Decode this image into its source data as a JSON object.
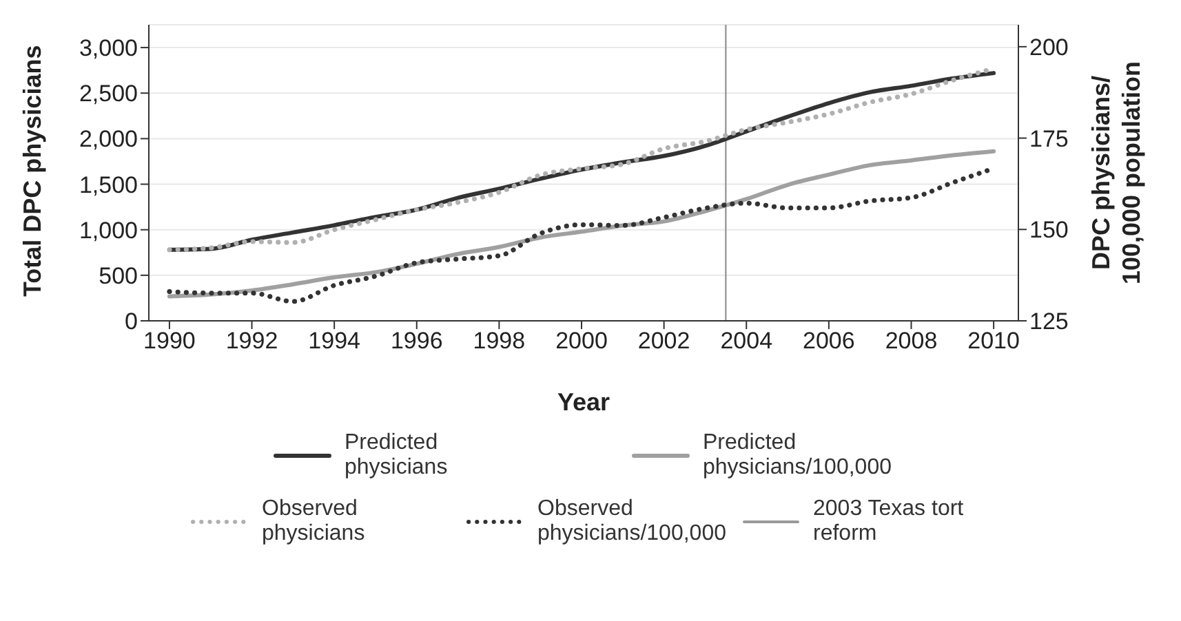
{
  "chart_data": {
    "type": "line",
    "xlabel": "Year",
    "ylabel": "Total DPC physicians",
    "y2label": "DPC physicians/ 100,000 population",
    "x": [
      1990,
      1991,
      1992,
      1993,
      1994,
      1995,
      1996,
      1997,
      1998,
      1999,
      2000,
      2001,
      2002,
      2003,
      2004,
      2005,
      2006,
      2007,
      2008,
      2009,
      2010
    ],
    "series": [
      {
        "name": "Predicted physicians",
        "color": "#333333",
        "line_style": "solid",
        "values": [
          780,
          790,
          890,
          970,
          1050,
          1140,
          1220,
          1350,
          1450,
          1560,
          1660,
          1740,
          1810,
          1920,
          2080,
          2240,
          2390,
          2510,
          2580,
          2660,
          2720
        ]
      },
      {
        "name": "Predicted physicians/100,000",
        "color": "#a0a0a0",
        "line_style": "solid",
        "axis": "y2",
        "values": [
          131.7,
          132.2,
          133.3,
          135,
          136.9,
          138.3,
          140.6,
          143.3,
          145.2,
          147.8,
          149.4,
          151.1,
          152.2,
          155,
          158.3,
          162.2,
          165,
          167.6,
          168.9,
          170.3,
          171.4
        ]
      },
      {
        "name": "Observed physicians",
        "color": "#b0b0b0",
        "line_style": "dotted",
        "values": [
          780,
          800,
          870,
          860,
          1000,
          1110,
          1220,
          1300,
          1410,
          1600,
          1670,
          1720,
          1890,
          1970,
          2100,
          2180,
          2270,
          2400,
          2490,
          2640,
          2770
        ]
      },
      {
        "name": "Observed physicians/100,000",
        "color": "#333333",
        "line_style": "dotted",
        "axis": "y2",
        "values": [
          133,
          132.6,
          132.6,
          130.3,
          134.7,
          137.2,
          140.9,
          141.9,
          142.8,
          148.9,
          151.3,
          151.1,
          153.3,
          155.8,
          157.2,
          155.9,
          155.9,
          157.8,
          158.7,
          162.8,
          166.7
        ]
      }
    ],
    "ref_lines": [
      {
        "axis": "x",
        "value": 2003.5,
        "label": "2003 Texas tort reform",
        "color": "#999999"
      }
    ],
    "xlim": [
      1989.5,
      2010.6
    ],
    "xticks": [
      1990,
      1992,
      1994,
      1996,
      1998,
      2000,
      2002,
      2004,
      2006,
      2008,
      2010
    ],
    "ylim": [
      0,
      3250
    ],
    "yticks": [
      0,
      {
        "value": 500,
        "label": "500"
      },
      {
        "value": 1000,
        "label": "1,000"
      },
      {
        "value": 1500,
        "label": "1,500"
      },
      {
        "value": 2000,
        "label": "2,000"
      },
      {
        "value": 2500,
        "label": "2,500"
      },
      {
        "value": 3000,
        "label": "3,000"
      }
    ],
    "y2lim": [
      125,
      206
    ],
    "y2ticks": [
      125,
      150,
      175,
      200
    ],
    "grid": "y",
    "legend": "bottom",
    "marker": "none"
  }
}
